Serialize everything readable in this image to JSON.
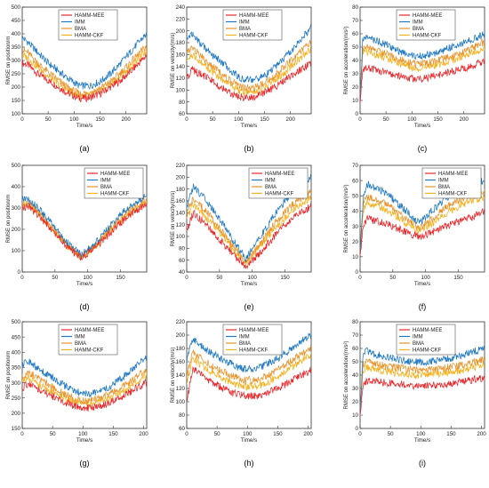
{
  "figure": {
    "legend_labels": [
      "HAMM-MEE",
      "IMM",
      "BMA",
      "HAMM-CKF"
    ],
    "series_colors": [
      "#e8262a",
      "#1f78c1",
      "#e8922a",
      "#f5b01b"
    ]
  },
  "chart_data": [
    {
      "id": "a",
      "caption": "(a)",
      "type": "line",
      "xlabel": "Time/s",
      "ylabel": "RMSE on position/m",
      "xlim": [
        0,
        240
      ],
      "ylim": [
        100,
        500
      ],
      "xticks": [
        0,
        50,
        100,
        150,
        200
      ],
      "yticks": [
        100,
        150,
        200,
        250,
        300,
        350,
        400,
        450,
        500
      ],
      "legend_position": "top-center",
      "x": [
        0,
        10,
        30,
        50,
        70,
        90,
        110,
        130,
        150,
        170,
        190,
        210,
        230,
        240
      ],
      "series": [
        {
          "name": "HAMM-MEE",
          "values": [
            290,
            285,
            250,
            225,
            200,
            175,
            158,
            160,
            175,
            200,
            225,
            260,
            300,
            320
          ]
        },
        {
          "name": "IMM",
          "values": [
            385,
            370,
            330,
            290,
            260,
            230,
            205,
            205,
            220,
            250,
            290,
            335,
            380,
            400
          ]
        },
        {
          "name": "BMA",
          "values": [
            340,
            330,
            290,
            255,
            225,
            195,
            175,
            178,
            195,
            220,
            255,
            295,
            335,
            355
          ]
        },
        {
          "name": "HAMM-CKF",
          "values": [
            320,
            310,
            275,
            240,
            210,
            185,
            168,
            170,
            185,
            210,
            240,
            278,
            318,
            338
          ]
        }
      ]
    },
    {
      "id": "b",
      "caption": "(b)",
      "type": "line",
      "xlabel": "Time/s",
      "ylabel": "RMSE on velocity/(m/s)",
      "xlim": [
        0,
        240
      ],
      "ylim": [
        60,
        240
      ],
      "xticks": [
        0,
        50,
        100,
        150,
        200
      ],
      "yticks": [
        60,
        80,
        100,
        120,
        140,
        160,
        180,
        200,
        220,
        240
      ],
      "legend_position": "top-center",
      "x": [
        0,
        10,
        30,
        50,
        70,
        90,
        110,
        130,
        150,
        170,
        190,
        210,
        230,
        240
      ],
      "series": [
        {
          "name": "HAMM-MEE",
          "values": [
            120,
            135,
            125,
            115,
            102,
            92,
            87,
            88,
            95,
            105,
            118,
            130,
            140,
            145
          ]
        },
        {
          "name": "IMM",
          "values": [
            190,
            195,
            175,
            160,
            145,
            128,
            118,
            118,
            125,
            138,
            155,
            175,
            195,
            205
          ]
        },
        {
          "name": "BMA",
          "values": [
            165,
            172,
            155,
            140,
            125,
            112,
            103,
            104,
            112,
            125,
            140,
            157,
            175,
            182
          ]
        },
        {
          "name": "HAMM-CKF",
          "values": [
            150,
            160,
            145,
            130,
            117,
            105,
            96,
            97,
            105,
            117,
            130,
            147,
            163,
            170
          ]
        }
      ]
    },
    {
      "id": "c",
      "caption": "(c)",
      "type": "line",
      "xlabel": "Time/s",
      "ylabel": "RMSE on acceleration/(m/s²)",
      "xlim": [
        0,
        240
      ],
      "ylim": [
        0,
        80
      ],
      "xticks": [
        0,
        50,
        100,
        150,
        200
      ],
      "yticks": [
        0,
        10,
        20,
        30,
        40,
        50,
        60,
        70,
        80
      ],
      "legend_position": "top-center",
      "x": [
        0,
        5,
        10,
        30,
        50,
        70,
        90,
        110,
        130,
        150,
        170,
        190,
        210,
        230,
        240
      ],
      "series": [
        {
          "name": "HAMM-MEE",
          "values": [
            10,
            30,
            35,
            33,
            31,
            29,
            27,
            26,
            27,
            29,
            31,
            33,
            35,
            38,
            40
          ]
        },
        {
          "name": "IMM",
          "values": [
            12,
            55,
            58,
            55,
            52,
            48,
            45,
            43,
            44,
            46,
            49,
            52,
            55,
            58,
            60
          ]
        },
        {
          "name": "BMA",
          "values": [
            11,
            48,
            50,
            47,
            45,
            42,
            39,
            37,
            38,
            40,
            42,
            45,
            48,
            52,
            54
          ]
        },
        {
          "name": "HAMM-CKF",
          "values": [
            11,
            45,
            47,
            44,
            42,
            39,
            36,
            34,
            35,
            37,
            39,
            42,
            45,
            48,
            50
          ]
        }
      ]
    },
    {
      "id": "d",
      "caption": "(d)",
      "type": "line",
      "xlabel": "Time/s",
      "ylabel": "RMSE on position/m",
      "xlim": [
        0,
        190
      ],
      "ylim": [
        0,
        500
      ],
      "xticks": [
        0,
        50,
        100,
        150
      ],
      "yticks": [
        0,
        100,
        200,
        300,
        400,
        500
      ],
      "legend_position": "top-right",
      "x": [
        0,
        10,
        30,
        50,
        70,
        90,
        110,
        130,
        150,
        170,
        190
      ],
      "series": [
        {
          "name": "HAMM-MEE",
          "values": [
            300,
            310,
            245,
            180,
            110,
            68,
            110,
            170,
            230,
            280,
            320
          ]
        },
        {
          "name": "IMM",
          "values": [
            340,
            345,
            280,
            210,
            135,
            78,
            130,
            200,
            270,
            320,
            360
          ]
        },
        {
          "name": "BMA",
          "values": [
            320,
            328,
            262,
            195,
            122,
            72,
            120,
            185,
            250,
            300,
            340
          ]
        },
        {
          "name": "HAMM-CKF",
          "values": [
            310,
            318,
            252,
            188,
            116,
            70,
            115,
            178,
            240,
            290,
            330
          ]
        }
      ]
    },
    {
      "id": "e",
      "caption": "(e)",
      "type": "line",
      "xlabel": "Time/s",
      "ylabel": "RMSE on velocity/(m/s)",
      "xlim": [
        0,
        190
      ],
      "ylim": [
        40,
        220
      ],
      "xticks": [
        0,
        50,
        100,
        150
      ],
      "yticks": [
        40,
        60,
        80,
        100,
        120,
        140,
        160,
        180,
        200,
        220
      ],
      "legend_position": "top-right",
      "x": [
        0,
        10,
        30,
        50,
        70,
        90,
        110,
        130,
        150,
        170,
        190
      ],
      "series": [
        {
          "name": "HAMM-MEE",
          "values": [
            110,
            140,
            120,
            95,
            70,
            50,
            70,
            95,
            120,
            140,
            150
          ]
        },
        {
          "name": "IMM",
          "values": [
            150,
            185,
            160,
            130,
            95,
            62,
            95,
            130,
            160,
            185,
            200
          ]
        },
        {
          "name": "BMA",
          "values": [
            140,
            165,
            142,
            115,
            85,
            57,
            85,
            115,
            142,
            163,
            175
          ]
        },
        {
          "name": "HAMM-CKF",
          "values": [
            130,
            155,
            132,
            108,
            80,
            55,
            80,
            108,
            132,
            153,
            165
          ]
        }
      ]
    },
    {
      "id": "f",
      "caption": "(f)",
      "type": "line",
      "xlabel": "Time/s",
      "ylabel": "RMSE on acceleration/(m/s²)",
      "xlim": [
        0,
        190
      ],
      "ylim": [
        0,
        70
      ],
      "xticks": [
        0,
        50,
        100,
        150
      ],
      "yticks": [
        0,
        10,
        20,
        30,
        40,
        50,
        60,
        70
      ],
      "legend_position": "top-right",
      "x": [
        0,
        5,
        10,
        30,
        50,
        70,
        90,
        110,
        130,
        150,
        170,
        190
      ],
      "series": [
        {
          "name": "HAMM-MEE",
          "values": [
            10,
            30,
            35,
            33,
            30,
            26,
            23,
            26,
            30,
            33,
            36,
            40
          ]
        },
        {
          "name": "IMM",
          "values": [
            12,
            50,
            58,
            54,
            48,
            40,
            32,
            40,
            48,
            54,
            58,
            60
          ]
        },
        {
          "name": "BMA",
          "values": [
            11,
            45,
            50,
            47,
            42,
            35,
            29,
            35,
            42,
            47,
            51,
            53
          ]
        },
        {
          "name": "HAMM-CKF",
          "values": [
            11,
            40,
            46,
            43,
            38,
            32,
            27,
            32,
            38,
            43,
            47,
            49
          ]
        }
      ]
    },
    {
      "id": "g",
      "caption": "(g)",
      "type": "line",
      "xlabel": "Time/s",
      "ylabel": "RMSE on position/m",
      "xlim": [
        0,
        205
      ],
      "ylim": [
        150,
        500
      ],
      "xticks": [
        0,
        50,
        100,
        150,
        200
      ],
      "yticks": [
        150,
        200,
        250,
        300,
        350,
        400,
        450,
        500
      ],
      "legend_position": "top-center",
      "x": [
        0,
        10,
        30,
        50,
        70,
        90,
        110,
        130,
        150,
        170,
        190,
        205
      ],
      "series": [
        {
          "name": "HAMM-MEE",
          "values": [
            280,
            300,
            275,
            255,
            235,
            220,
            215,
            225,
            240,
            260,
            285,
            300
          ]
        },
        {
          "name": "IMM",
          "values": [
            360,
            370,
            340,
            315,
            290,
            270,
            262,
            272,
            295,
            325,
            360,
            385
          ]
        },
        {
          "name": "BMA",
          "values": [
            320,
            335,
            308,
            285,
            262,
            245,
            240,
            250,
            268,
            292,
            322,
            342
          ]
        },
        {
          "name": "HAMM-CKF",
          "values": [
            300,
            318,
            292,
            270,
            250,
            235,
            230,
            238,
            255,
            278,
            305,
            322
          ]
        }
      ]
    },
    {
      "id": "h",
      "caption": "(h)",
      "type": "line",
      "xlabel": "Time/s",
      "ylabel": "RMSE on velocity/(m/s)",
      "xlim": [
        0,
        205
      ],
      "ylim": [
        60,
        220
      ],
      "xticks": [
        0,
        50,
        100,
        150,
        200
      ],
      "yticks": [
        60,
        80,
        100,
        120,
        140,
        160,
        180,
        200,
        220
      ],
      "legend_position": "top-center",
      "x": [
        0,
        10,
        30,
        50,
        70,
        90,
        110,
        130,
        150,
        170,
        190,
        205
      ],
      "series": [
        {
          "name": "HAMM-MEE",
          "values": [
            100,
            150,
            135,
            125,
            115,
            110,
            108,
            112,
            120,
            130,
            140,
            148
          ]
        },
        {
          "name": "IMM",
          "values": [
            160,
            195,
            180,
            168,
            158,
            150,
            148,
            155,
            165,
            178,
            192,
            200
          ]
        },
        {
          "name": "BMA",
          "values": [
            140,
            175,
            160,
            150,
            140,
            134,
            132,
            138,
            148,
            160,
            172,
            180
          ]
        },
        {
          "name": "HAMM-CKF",
          "values": [
            130,
            165,
            150,
            140,
            130,
            124,
            122,
            128,
            138,
            150,
            162,
            170
          ]
        }
      ]
    },
    {
      "id": "i",
      "caption": "(i)",
      "type": "line",
      "xlabel": "Time/s",
      "ylabel": "RMSE on acceleration/(m/s²)",
      "xlim": [
        0,
        205
      ],
      "ylim": [
        0,
        80
      ],
      "xticks": [
        0,
        50,
        100,
        150,
        200
      ],
      "yticks": [
        0,
        10,
        20,
        30,
        40,
        50,
        60,
        70,
        80
      ],
      "legend_position": "top-center",
      "x": [
        0,
        5,
        10,
        30,
        50,
        70,
        90,
        110,
        130,
        150,
        170,
        190,
        205
      ],
      "series": [
        {
          "name": "HAMM-MEE",
          "values": [
            10,
            32,
            36,
            35,
            34,
            33,
            32,
            32,
            33,
            34,
            35,
            37,
            38
          ]
        },
        {
          "name": "IMM",
          "values": [
            12,
            55,
            58,
            55,
            53,
            51,
            50,
            50,
            51,
            53,
            55,
            58,
            60
          ]
        },
        {
          "name": "BMA",
          "values": [
            11,
            48,
            50,
            48,
            46,
            45,
            44,
            44,
            45,
            46,
            48,
            50,
            52
          ]
        },
        {
          "name": "HAMM-CKF",
          "values": [
            11,
            44,
            46,
            44,
            42,
            41,
            40,
            40,
            41,
            42,
            44,
            46,
            48
          ]
        }
      ]
    }
  ]
}
